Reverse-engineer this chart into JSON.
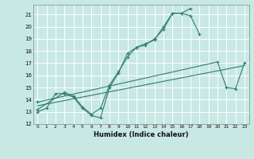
{
  "xlabel": "Humidex (Indice chaleur)",
  "bg_color": "#c8e8e4",
  "grid_color": "#ffffff",
  "line_color": "#2e7d72",
  "xlim": [
    -0.5,
    23.5
  ],
  "ylim": [
    12,
    21.8
  ],
  "yticks": [
    12,
    13,
    14,
    15,
    16,
    17,
    18,
    19,
    20,
    21
  ],
  "xticks": [
    0,
    1,
    2,
    3,
    4,
    5,
    6,
    7,
    8,
    9,
    10,
    11,
    12,
    13,
    14,
    15,
    16,
    17,
    18,
    19,
    20,
    21,
    22,
    23
  ],
  "series": [
    {
      "x": [
        0,
        1,
        2,
        3,
        4,
        5,
        6,
        7,
        8,
        9,
        10,
        11,
        12,
        13,
        14,
        15,
        16,
        17
      ],
      "y": [
        13,
        13.3,
        14.5,
        14.5,
        14.2,
        13.3,
        12.7,
        12.5,
        15.0,
        16.2,
        17.8,
        18.3,
        18.5,
        19.0,
        19.8,
        21.1,
        21.1,
        21.5
      ],
      "marker": "+"
    },
    {
      "x": [
        0,
        3,
        4,
        5,
        6,
        7,
        8,
        9,
        10,
        11,
        12,
        13,
        14,
        15,
        16,
        17,
        18
      ],
      "y": [
        13.2,
        14.6,
        14.3,
        13.4,
        12.8,
        13.3,
        15.2,
        16.3,
        17.5,
        18.3,
        18.6,
        18.9,
        20.0,
        21.1,
        21.1,
        20.9,
        19.4
      ],
      "marker": "+"
    },
    {
      "x": [
        0,
        23
      ],
      "y": [
        13.5,
        16.8
      ],
      "marker": null
    },
    {
      "x": [
        0,
        20,
        21,
        22,
        23
      ],
      "y": [
        13.8,
        17.1,
        15.0,
        14.9,
        17.0
      ],
      "marker": "+"
    }
  ]
}
